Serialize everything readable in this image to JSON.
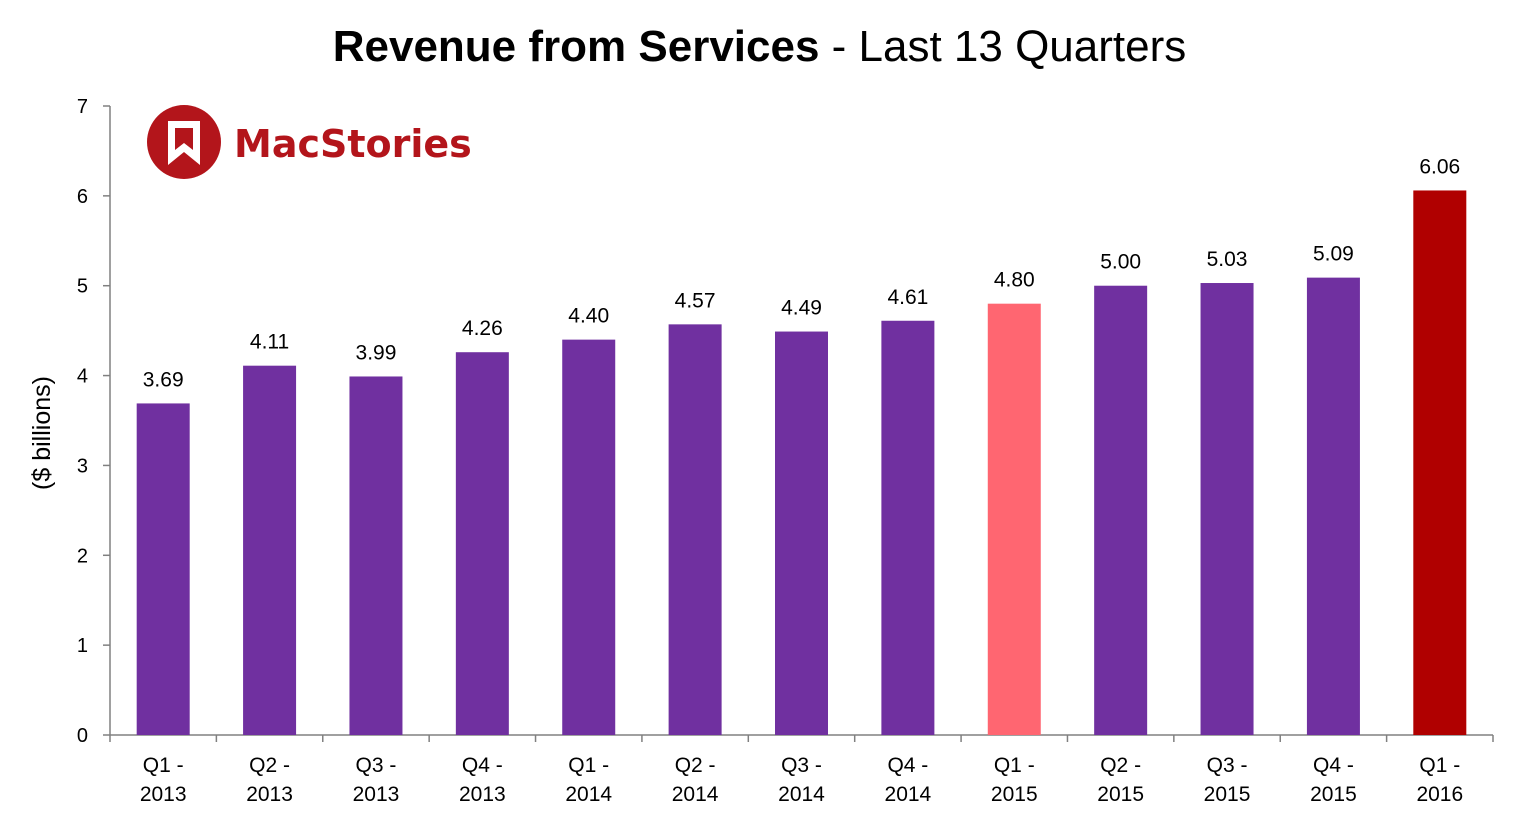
{
  "chart_data": {
    "type": "bar",
    "title_bold": "Revenue from Services",
    "title_rest": " - Last 13 Quarters",
    "xlabel": "",
    "ylabel": "($ billions)",
    "ylim": [
      0,
      7
    ],
    "yticks": [
      0,
      1,
      2,
      3,
      4,
      5,
      6,
      7
    ],
    "grid": false,
    "categories": [
      [
        "Q1 -",
        "2013"
      ],
      [
        "Q2 -",
        "2013"
      ],
      [
        "Q3 -",
        "2013"
      ],
      [
        "Q4 -",
        "2013"
      ],
      [
        "Q1 -",
        "2014"
      ],
      [
        "Q2 -",
        "2014"
      ],
      [
        "Q3 -",
        "2014"
      ],
      [
        "Q4 -",
        "2014"
      ],
      [
        "Q1 -",
        "2015"
      ],
      [
        "Q2 -",
        "2015"
      ],
      [
        "Q3 -",
        "2015"
      ],
      [
        "Q4 -",
        "2015"
      ],
      [
        "Q1 -",
        "2016"
      ]
    ],
    "values": [
      3.69,
      4.11,
      3.99,
      4.26,
      4.4,
      4.57,
      4.49,
      4.61,
      4.8,
      5.0,
      5.03,
      5.09,
      6.06
    ],
    "value_labels": [
      "3.69",
      "4.11",
      "3.99",
      "4.26",
      "4.40",
      "4.57",
      "4.49",
      "4.61",
      "4.80",
      "5.00",
      "5.03",
      "5.09",
      "6.06"
    ],
    "bar_colors": [
      "#7030a0",
      "#7030a0",
      "#7030a0",
      "#7030a0",
      "#7030a0",
      "#7030a0",
      "#7030a0",
      "#7030a0",
      "#ff6671",
      "#7030a0",
      "#7030a0",
      "#7030a0",
      "#b00000"
    ]
  },
  "logo": {
    "text": "MacStories",
    "color": "#b3151b",
    "icon": "bookmark-icon"
  },
  "colors": {
    "axis": "#808080",
    "text": "#000000"
  }
}
